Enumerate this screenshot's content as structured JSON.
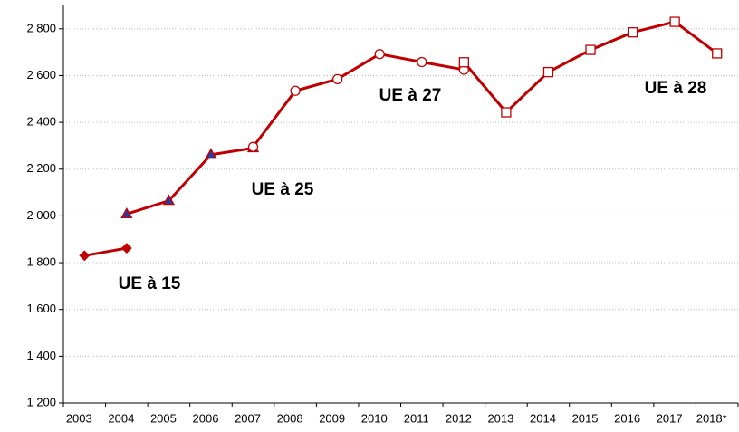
{
  "chart_data": {
    "type": "line",
    "categories": [
      "2003",
      "2004",
      "2005",
      "2006",
      "2007",
      "2008",
      "2009",
      "2010",
      "2011",
      "2012",
      "2013",
      "2014",
      "2015",
      "2016",
      "2017",
      "2018*"
    ],
    "series": [
      {
        "name": "UE à 15",
        "color": "#c00000",
        "marker": "diamond",
        "marker_fill": "#c00000",
        "values": [
          1830,
          1862,
          null,
          null,
          null,
          null,
          null,
          null,
          null,
          null,
          null,
          null,
          null,
          null,
          null,
          null
        ]
      },
      {
        "name": "UE à 25",
        "color": "#c00000",
        "marker": "triangle",
        "marker_fill": "#2e3a9a",
        "values": [
          null,
          2008,
          2065,
          2262,
          2290,
          null,
          null,
          null,
          null,
          null,
          null,
          null,
          null,
          null,
          null,
          null
        ]
      },
      {
        "name": "UE à 27",
        "color": "#c00000",
        "marker": "circle",
        "marker_fill": "#ffffff",
        "values": [
          null,
          null,
          null,
          null,
          2295,
          2535,
          2585,
          2692,
          2658,
          2625,
          null,
          null,
          null,
          null,
          null,
          null
        ]
      },
      {
        "name": "UE à 28",
        "color": "#c00000",
        "marker": "square",
        "marker_fill": "#ffffff",
        "values": [
          null,
          null,
          null,
          null,
          null,
          null,
          null,
          null,
          null,
          2657,
          2443,
          2615,
          2710,
          2785,
          2830,
          2695
        ]
      }
    ],
    "ylim": [
      1200,
      2900
    ],
    "yticks": [
      {
        "value": 1200,
        "label": "1 200"
      },
      {
        "value": 1400,
        "label": "1 400"
      },
      {
        "value": 1600,
        "label": "1 600"
      },
      {
        "value": 1800,
        "label": "1 800"
      },
      {
        "value": 2000,
        "label": "2 000"
      },
      {
        "value": 2200,
        "label": "2 200"
      },
      {
        "value": 2400,
        "label": "2 400"
      },
      {
        "value": 2600,
        "label": "2 600"
      },
      {
        "value": 2800,
        "label": "2 800"
      }
    ],
    "grid": true
  }
}
